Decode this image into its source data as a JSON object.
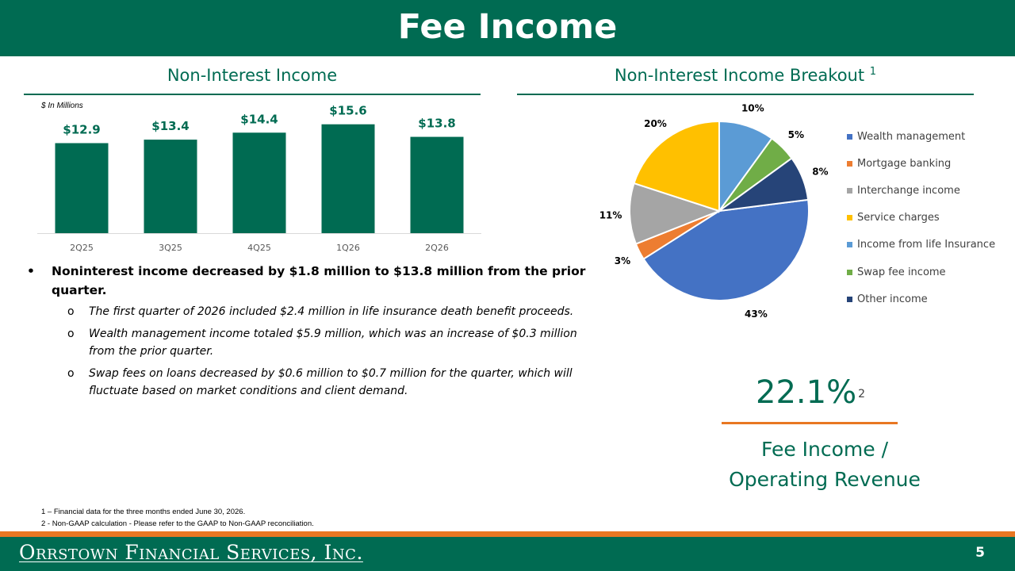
{
  "header": {
    "title": "Fee Income"
  },
  "left_panel": {
    "title": "Non-Interest Income",
    "units": "$ In Millions"
  },
  "right_panel": {
    "title": "Non-Interest Income Breakout",
    "title_sup": "1"
  },
  "chart_data": [
    {
      "type": "bar",
      "title": "Non-Interest Income",
      "units_note": "$ In Millions",
      "categories": [
        "2Q25",
        "3Q25",
        "4Q25",
        "1Q26",
        "2Q26"
      ],
      "values": [
        12.9,
        13.4,
        14.4,
        15.6,
        13.8
      ],
      "data_labels": [
        "$12.9",
        "$13.4",
        "$14.4",
        "$15.6",
        "$13.8"
      ],
      "ylim": [
        0,
        17.5
      ],
      "color": "#006b52",
      "grid": false
    },
    {
      "type": "pie",
      "title": "Non-Interest Income Breakout",
      "legend_position": "right",
      "slices": [
        {
          "name": "Wealth management",
          "value": 43,
          "label": "43%",
          "color": "#4472c4"
        },
        {
          "name": "Mortgage banking",
          "value": 3,
          "label": "3%",
          "color": "#ed7d31"
        },
        {
          "name": "Interchange income",
          "value": 11,
          "label": "11%",
          "color": "#a5a5a5"
        },
        {
          "name": "Service charges",
          "value": 20,
          "label": "20%",
          "color": "#ffc000"
        },
        {
          "name": "Income from life Insurance",
          "value": 10,
          "label": "10%",
          "color": "#5b9bd5"
        },
        {
          "name": "Swap fee income",
          "value": 5,
          "label": "5%",
          "color": "#70ad47"
        },
        {
          "name": "Other income",
          "value": 8,
          "label": "8%",
          "color": "#264478"
        }
      ]
    }
  ],
  "bullets": {
    "main": "Noninterest income decreased by $1.8 million to $13.8 million from the prior quarter.",
    "bullet_char": "•",
    "sub_marker": "o",
    "sub": [
      "The first quarter of 2026 included $2.4 million in life insurance death benefit proceeds.",
      "Wealth management income totaled $5.9 million, which was an increase of $0.3 million from the prior quarter.",
      "Swap fees on loans decreased by $0.6 million to $0.7 million for the quarter, which will fluctuate based on market conditions and client demand."
    ]
  },
  "kpi": {
    "value": "22.1%",
    "sup": "2",
    "label_line1": "Fee Income /",
    "label_line2": "Operating Revenue"
  },
  "footnotes": [
    "1 – Financial data for the three months ended June 30, 2026.",
    "2 - Non-GAAP calculation - Please refer to the GAAP to Non-GAAP reconciliation."
  ],
  "footer": {
    "company": "Orrstown Financial Services, Inc.",
    "page": "5"
  },
  "colors": {
    "brand_green": "#006b52",
    "accent_orange": "#e87722"
  }
}
